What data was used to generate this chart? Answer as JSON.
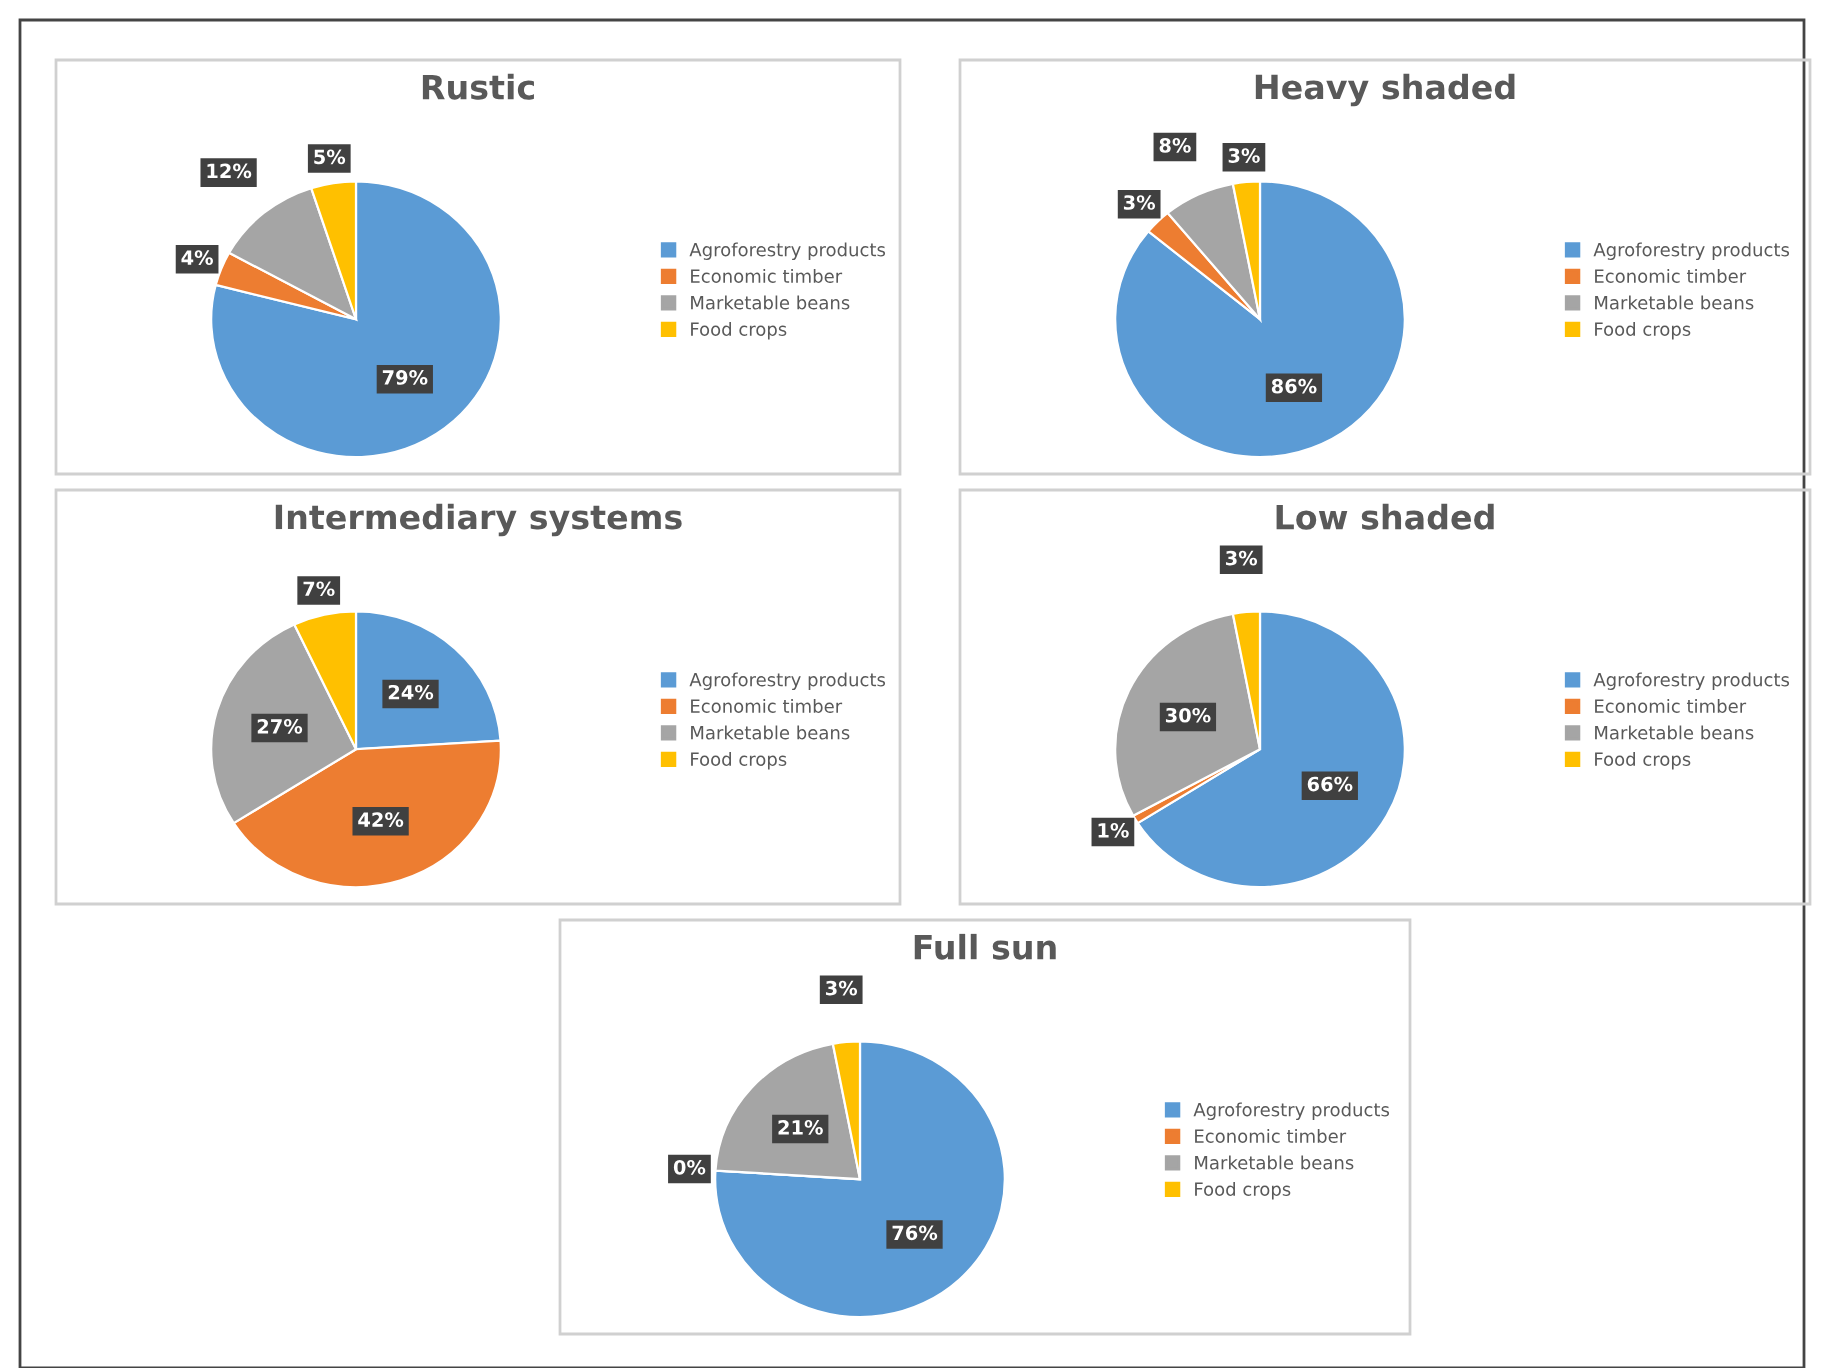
{
  "chart_data": [
    {
      "type": "pie",
      "title": "Rustic",
      "categories": [
        "Agroforestry products",
        "Economic timber",
        "Marketable beans",
        "Food crops"
      ],
      "values": [
        79,
        4,
        12,
        5
      ],
      "value_labels": [
        "79%",
        "4%",
        "12%",
        "5%"
      ],
      "colors": [
        "#5b9bd5",
        "#ed7d31",
        "#a5a5a5",
        "#ffc000"
      ],
      "legend": "right"
    },
    {
      "type": "pie",
      "title": "Heavy shaded",
      "categories": [
        "Agroforestry products",
        "Economic timber",
        "Marketable beans",
        "Food crops"
      ],
      "values": [
        86,
        3,
        8,
        3
      ],
      "value_labels": [
        "86%",
        "3%",
        "8%",
        "3%"
      ],
      "colors": [
        "#5b9bd5",
        "#ed7d31",
        "#a5a5a5",
        "#ffc000"
      ],
      "legend": "right"
    },
    {
      "type": "pie",
      "title": "Intermediary systems",
      "categories": [
        "Agroforestry products",
        "Economic timber",
        "Marketable beans",
        "Food crops"
      ],
      "values": [
        24,
        42,
        27,
        7
      ],
      "value_labels": [
        "24%",
        "42%",
        "27%",
        "7%"
      ],
      "colors": [
        "#5b9bd5",
        "#ed7d31",
        "#a5a5a5",
        "#ffc000"
      ],
      "legend": "right"
    },
    {
      "type": "pie",
      "title": "Low shaded",
      "categories": [
        "Agroforestry products",
        "Economic timber",
        "Marketable beans",
        "Food crops"
      ],
      "values": [
        66,
        1,
        30,
        3
      ],
      "value_labels": [
        "66%",
        "1%",
        "30%",
        "3%"
      ],
      "colors": [
        "#5b9bd5",
        "#ed7d31",
        "#a5a5a5",
        "#ffc000"
      ],
      "legend": "right"
    },
    {
      "type": "pie",
      "title": "Full sun",
      "categories": [
        "Agroforestry products",
        "Economic timber",
        "Marketable beans",
        "Food crops"
      ],
      "values": [
        76,
        0,
        21,
        3
      ],
      "value_labels": [
        "76%",
        "0%",
        "21%",
        "3%"
      ],
      "colors": [
        "#5b9bd5",
        "#ed7d31",
        "#a5a5a5",
        "#ffc000"
      ],
      "legend": "right"
    }
  ]
}
